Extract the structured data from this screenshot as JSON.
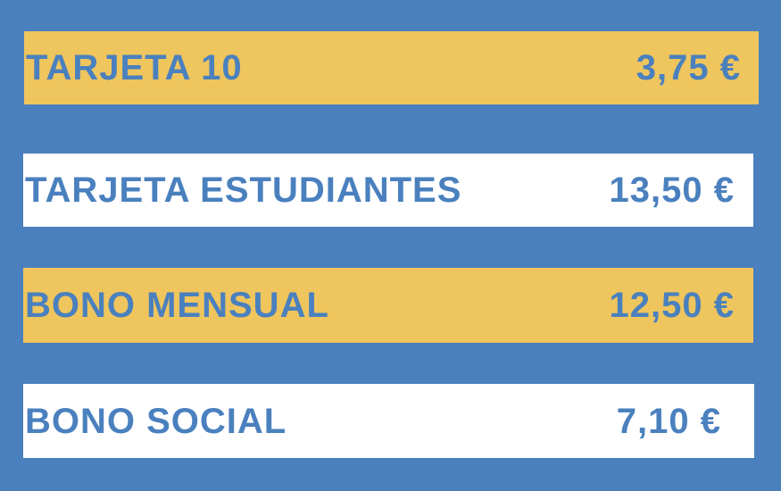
{
  "fares": [
    {
      "name": "TARJETA 10",
      "price": "3,75 €",
      "color": "#efc55e"
    },
    {
      "name": "TARJETA ESTUDIANTES",
      "price": "13,50 €",
      "color": "#ffffff"
    },
    {
      "name": "BONO MENSUAL",
      "price": "12,50 €",
      "color": "#efc55e"
    },
    {
      "name": "BONO SOCIAL",
      "price": "7,10 €",
      "color": "#ffffff"
    }
  ],
  "colors": {
    "background": "#4a80be",
    "text": "#4a80be",
    "yellow": "#efc55e",
    "white": "#ffffff"
  }
}
